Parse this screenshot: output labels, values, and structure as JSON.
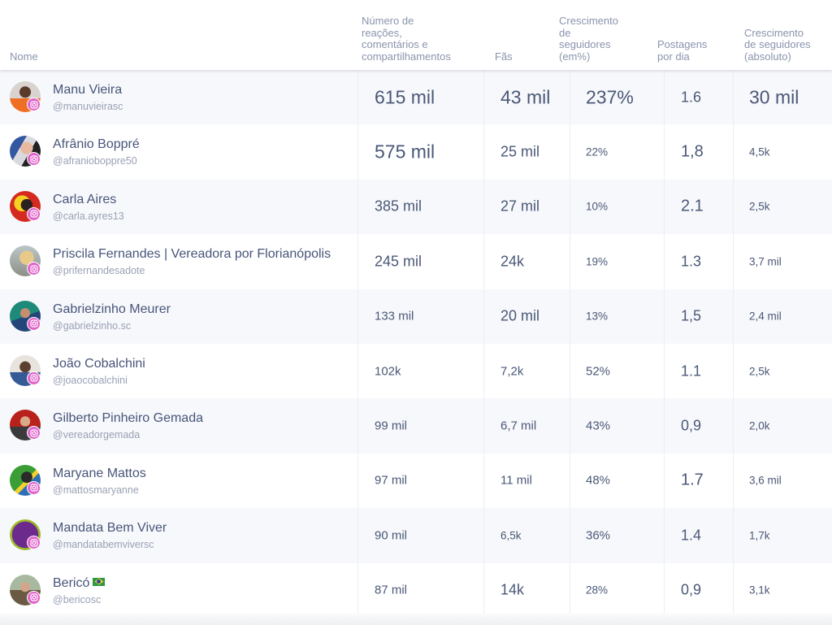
{
  "header": {
    "columns": [
      {
        "key": "nome",
        "label": "Nome"
      },
      {
        "key": "reacoes",
        "label": "Número de reações, comentários e compartilhamentos"
      },
      {
        "key": "fas",
        "label": "Fãs"
      },
      {
        "key": "crescimento_pct",
        "label": "Crescimento de seguidores (em%)"
      },
      {
        "key": "postagens",
        "label": "Postagens por dia"
      },
      {
        "key": "crescimento_abs",
        "label": "Crescimento de seguidores (absoluto)"
      }
    ],
    "labels": {
      "nome": "Nome",
      "reacoes_l1": "Número de",
      "reacoes_l2": "reações,",
      "reacoes_l3": "comentários e",
      "reacoes_l4": "compartilhamentos",
      "fas": "Fãs",
      "cresc_pct_l1": "Crescimento",
      "cresc_pct_l2": "de",
      "cresc_pct_l3": "seguidores",
      "cresc_pct_l4": "(em%)",
      "posts_l1": "Postagens",
      "posts_l2": "por dia",
      "cresc_abs_l1": "Crescimento",
      "cresc_abs_l2": "de seguidores",
      "cresc_abs_l3": "(absoluto)"
    }
  },
  "platform_icon": "instagram-icon",
  "colors": {
    "instagram_badge": "#e063c9",
    "row_alt": "#f7f8fb",
    "text": "#4a5877",
    "muted": "#9aa1b5"
  },
  "rows": [
    {
      "name": "Manu Vieira",
      "handle": "@manuvieirasc",
      "reacoes": "615 mil",
      "fas": "43 mil",
      "crescimento_pct": "237%",
      "postagens": "1.6",
      "crescimento_abs": "30 mil"
    },
    {
      "name": "Afrânio Boppré",
      "handle": "@afranioboppre50",
      "reacoes": "575 mil",
      "fas": "25 mil",
      "crescimento_pct": "22%",
      "postagens": "1,8",
      "crescimento_abs": "4,5k"
    },
    {
      "name": "Carla Aires",
      "handle": "@carla.ayres13",
      "reacoes": "385 mil",
      "fas": "27 mil",
      "crescimento_pct": "10%",
      "postagens": "2.1",
      "crescimento_abs": "2,5k"
    },
    {
      "name": "Priscila Fernandes | Vereadora por Florianópolis",
      "handle": "@prifernandesadote",
      "reacoes": "245 mil",
      "fas": "24k",
      "crescimento_pct": "19%",
      "postagens": "1.3",
      "crescimento_abs": "3,7 mil"
    },
    {
      "name": "Gabrielzinho Meurer",
      "handle": "@gabrielzinho.sc",
      "reacoes": "133 mil",
      "fas": "20 mil",
      "crescimento_pct": "13%",
      "postagens": "1,5",
      "crescimento_abs": "2,4 mil"
    },
    {
      "name": "João Cobalchini",
      "handle": "@joaocobalchini",
      "reacoes": "102k",
      "fas": "7,2k",
      "crescimento_pct": "52%",
      "postagens": "1.1",
      "crescimento_abs": "2,5k"
    },
    {
      "name": "Gilberto Pinheiro Gemada",
      "handle": "@vereadorgemada",
      "reacoes": "99 mil",
      "fas": "6,7 mil",
      "crescimento_pct": "43%",
      "postagens": "0,9",
      "crescimento_abs": "2,0k"
    },
    {
      "name": "Maryane Mattos",
      "handle": "@mattosmaryanne",
      "reacoes": "97 mil",
      "fas": "11 mil",
      "crescimento_pct": "48%",
      "postagens": "1.7",
      "crescimento_abs": "3,6 mil"
    },
    {
      "name": "Mandata Bem Viver",
      "handle": "@mandatabemviversc",
      "reacoes": "90 mil",
      "fas": "6,5k",
      "crescimento_pct": "36%",
      "postagens": "1.4",
      "crescimento_abs": "1,7k"
    },
    {
      "name": "Bericó",
      "handle": "@bericosc",
      "name_emoji": "brazil-flag-icon",
      "reacoes": "87 mil",
      "fas": "14k",
      "crescimento_pct": "28%",
      "postagens": "0,9",
      "crescimento_abs": "3,1k"
    }
  ]
}
